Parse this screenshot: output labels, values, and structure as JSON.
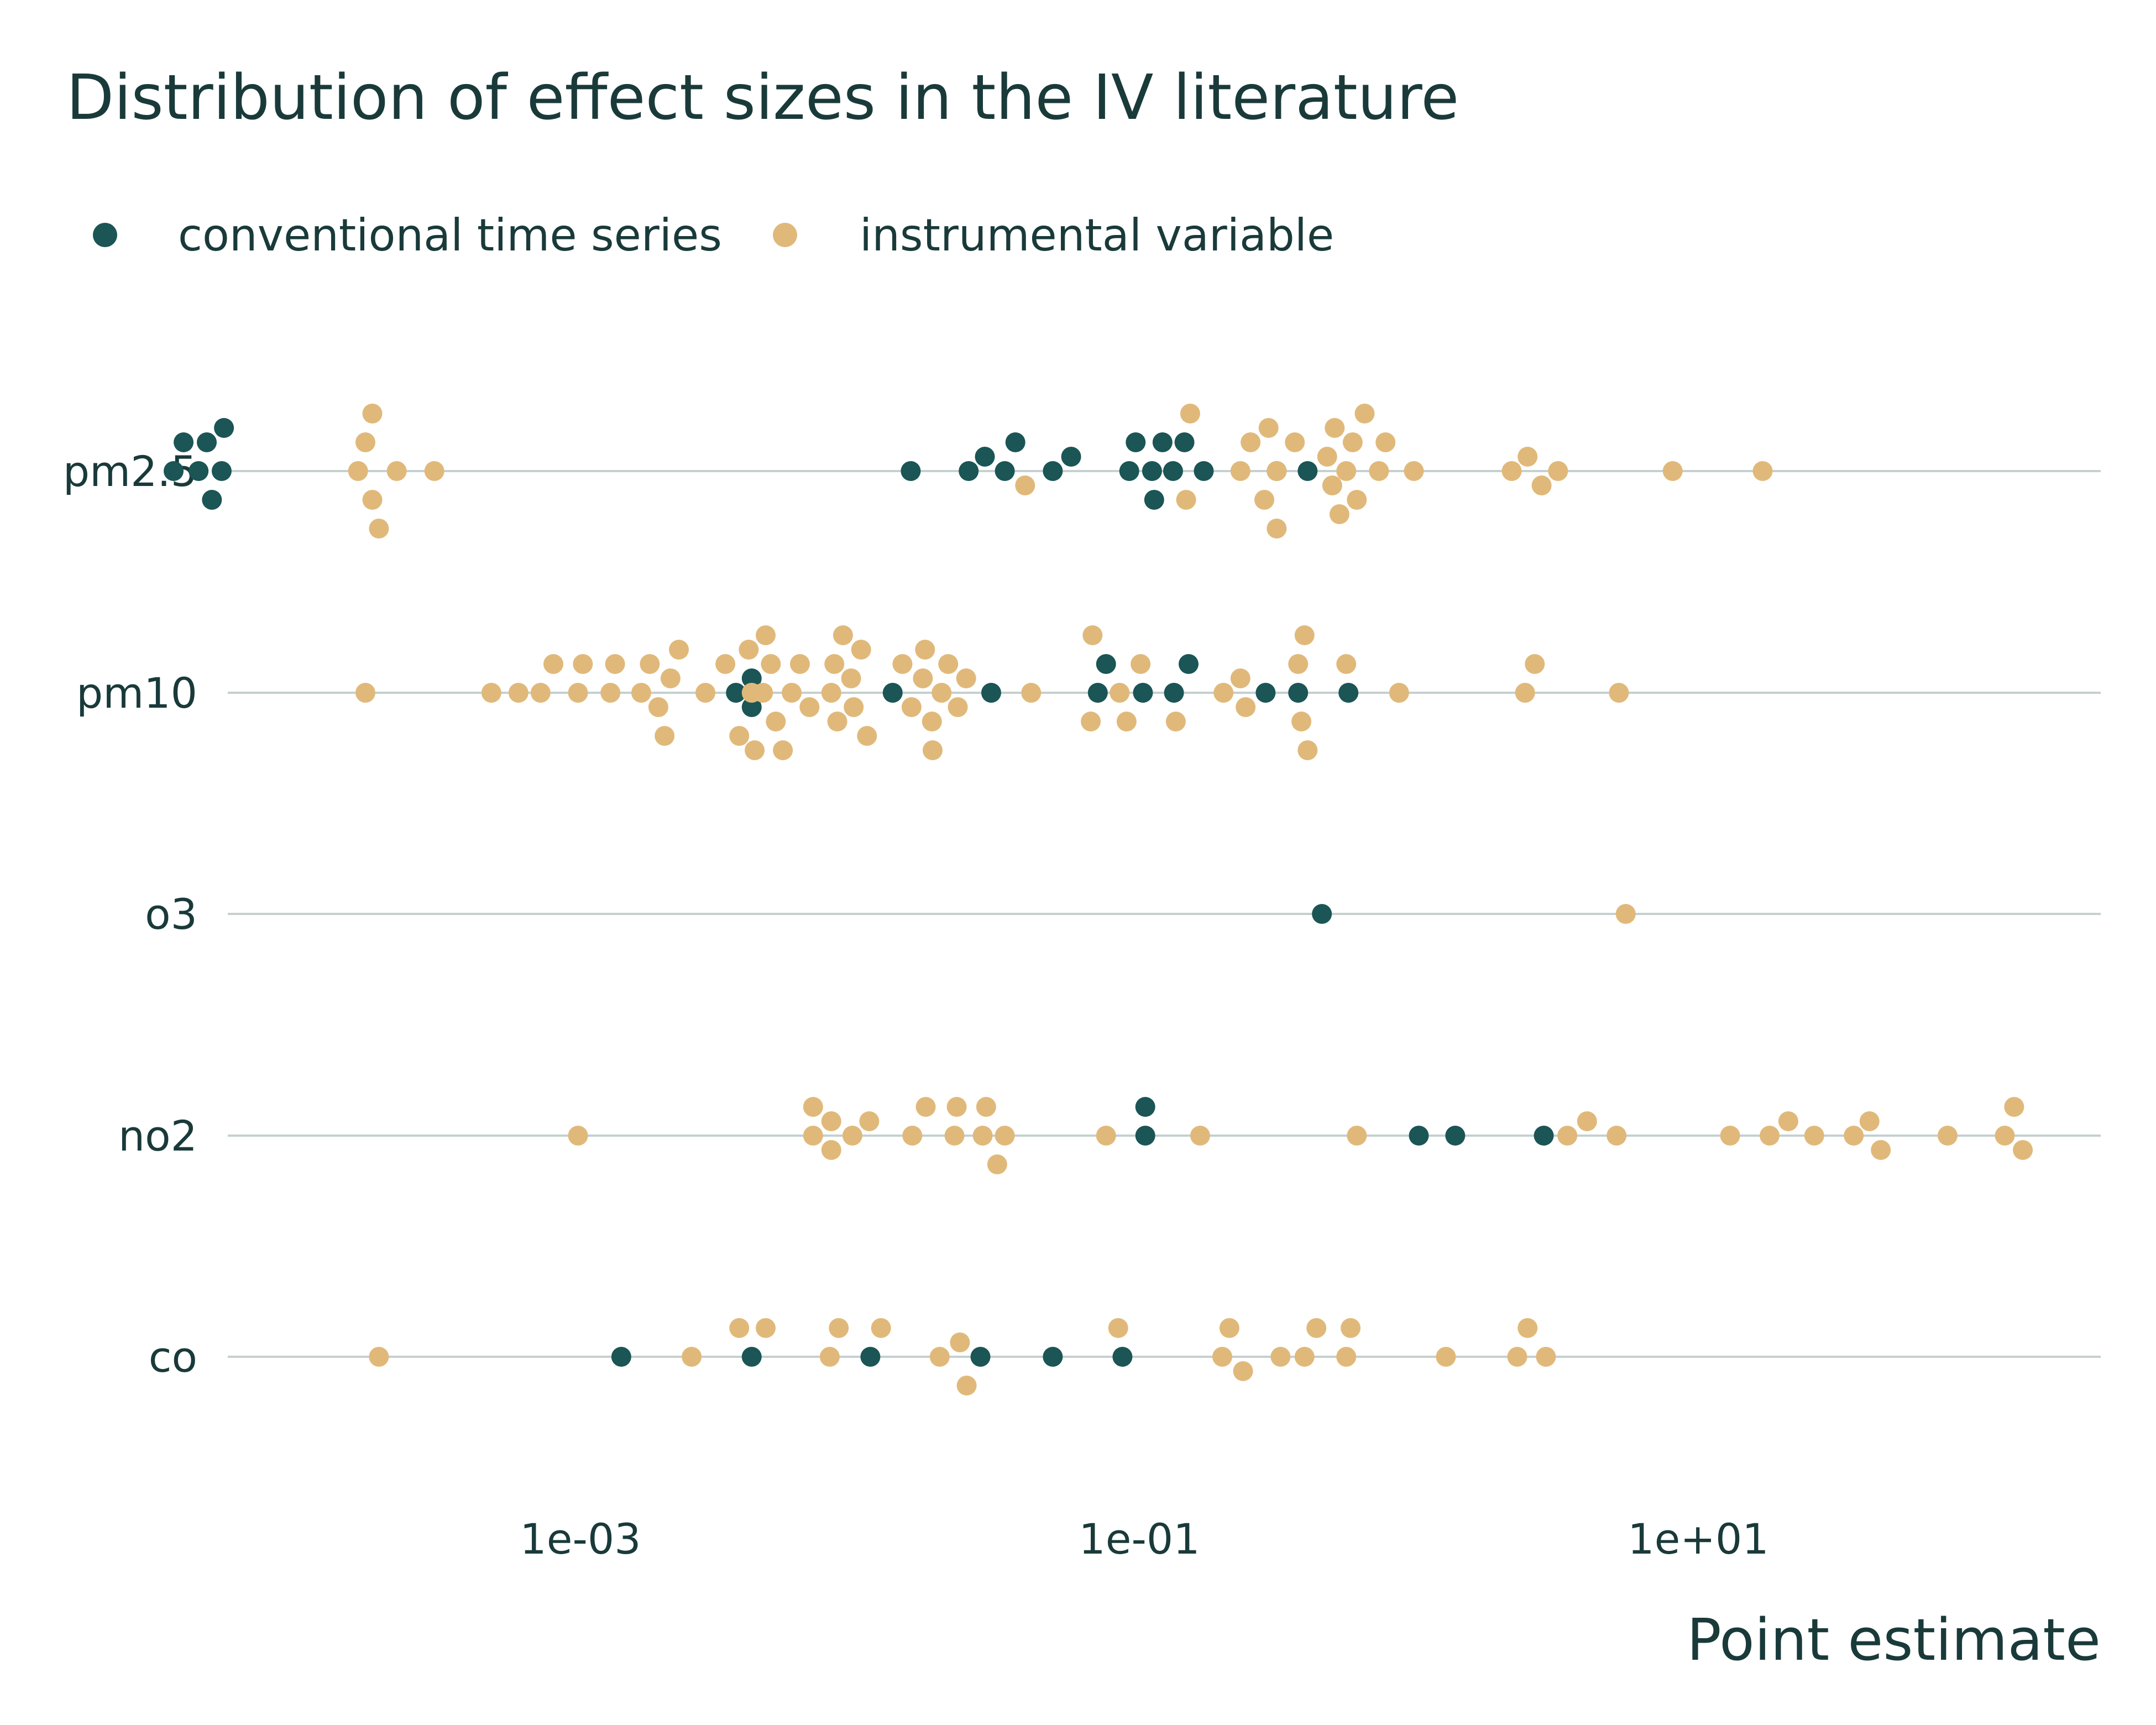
{
  "colors": {
    "conventional": "#1b5555",
    "instrumental": "#e0b97a",
    "grid": "#c5d0d0",
    "text": "#1a3a3a"
  },
  "chart_data": {
    "type": "scatter",
    "title": "Distribution of effect sizes in the IV literature",
    "xlabel": "Point estimate",
    "ylabel": "",
    "x_scale": "log10",
    "xlim": [
      2e-05,
      1200
    ],
    "x_ticks": [
      {
        "value": 0.001,
        "label": "1e-03"
      },
      {
        "value": 0.1,
        "label": "1e-01"
      },
      {
        "value": 10,
        "label": "1e+01"
      }
    ],
    "categories": [
      "pm2.5",
      "pm10",
      "o3",
      "no2",
      "co"
    ],
    "legend": {
      "position": "top-left",
      "entries": [
        "conventional time series",
        "instrumental variable"
      ]
    },
    "series": [
      {
        "name": "conventional time series",
        "points": [
          {
            "cat": "pm2.5",
            "x": 3.5e-05
          },
          {
            "cat": "pm2.5",
            "x": 3.8e-05
          },
          {
            "cat": "pm2.5",
            "x": 4.3e-05
          },
          {
            "cat": "pm2.5",
            "x": 4.6e-05
          },
          {
            "cat": "pm2.5",
            "x": 4.8e-05
          },
          {
            "cat": "pm2.5",
            "x": 5.2e-05
          },
          {
            "cat": "pm2.5",
            "x": 5.3e-05
          },
          {
            "cat": "pm2.5",
            "x": 0.0152
          },
          {
            "cat": "pm2.5",
            "x": 0.0245
          },
          {
            "cat": "pm2.5",
            "x": 0.028
          },
          {
            "cat": "pm2.5",
            "x": 0.033
          },
          {
            "cat": "pm2.5",
            "x": 0.036
          },
          {
            "cat": "pm2.5",
            "x": 0.049
          },
          {
            "cat": "pm2.5",
            "x": 0.057
          },
          {
            "cat": "pm2.5",
            "x": 0.092
          },
          {
            "cat": "pm2.5",
            "x": 0.097
          },
          {
            "cat": "pm2.5",
            "x": 0.111
          },
          {
            "cat": "pm2.5",
            "x": 0.113
          },
          {
            "cat": "pm2.5",
            "x": 0.121
          },
          {
            "cat": "pm2.5",
            "x": 0.132
          },
          {
            "cat": "pm2.5",
            "x": 0.145
          },
          {
            "cat": "pm2.5",
            "x": 0.17
          },
          {
            "cat": "pm2.5",
            "x": 0.31
          },
          {
            "cat": "pm2.5",
            "x": 0.4
          },
          {
            "cat": "pm10",
            "x": 0.0036
          },
          {
            "cat": "pm10",
            "x": 0.0041
          },
          {
            "cat": "pm10",
            "x": 0.0041
          },
          {
            "cat": "pm10",
            "x": 0.0131
          },
          {
            "cat": "pm10",
            "x": 0.0295
          },
          {
            "cat": "pm10",
            "x": 0.071
          },
          {
            "cat": "pm10",
            "x": 0.076
          },
          {
            "cat": "pm10",
            "x": 0.103
          },
          {
            "cat": "pm10",
            "x": 0.133
          },
          {
            "cat": "pm10",
            "x": 0.15
          },
          {
            "cat": "pm10",
            "x": 0.283
          },
          {
            "cat": "pm10",
            "x": 0.37
          },
          {
            "cat": "pm10",
            "x": 0.56
          },
          {
            "cat": "o3",
            "x": 0.45
          },
          {
            "cat": "no2",
            "x": 0.105
          },
          {
            "cat": "no2",
            "x": 0.105
          },
          {
            "cat": "no2",
            "x": 1.0
          },
          {
            "cat": "no2",
            "x": 1.35
          },
          {
            "cat": "no2",
            "x": 2.8
          },
          {
            "cat": "co",
            "x": 0.0014
          },
          {
            "cat": "co",
            "x": 0.0041
          },
          {
            "cat": "co",
            "x": 0.0109
          },
          {
            "cat": "co",
            "x": 0.027
          },
          {
            "cat": "co",
            "x": 0.049
          },
          {
            "cat": "co",
            "x": 0.087
          }
        ]
      },
      {
        "name": "instrumental variable",
        "points": [
          {
            "cat": "pm2.5",
            "x": 0.00016
          },
          {
            "cat": "pm2.5",
            "x": 0.00017
          },
          {
            "cat": "pm2.5",
            "x": 0.00018
          },
          {
            "cat": "pm2.5",
            "x": 0.00018
          },
          {
            "cat": "pm2.5",
            "x": 0.00019
          },
          {
            "cat": "pm2.5",
            "x": 0.00022
          },
          {
            "cat": "pm2.5",
            "x": 0.0003
          },
          {
            "cat": "pm2.5",
            "x": 0.039
          },
          {
            "cat": "pm2.5",
            "x": 0.147
          },
          {
            "cat": "pm2.5",
            "x": 0.152
          },
          {
            "cat": "pm2.5",
            "x": 0.23
          },
          {
            "cat": "pm2.5",
            "x": 0.25
          },
          {
            "cat": "pm2.5",
            "x": 0.28
          },
          {
            "cat": "pm2.5",
            "x": 0.29
          },
          {
            "cat": "pm2.5",
            "x": 0.31
          },
          {
            "cat": "pm2.5",
            "x": 0.31
          },
          {
            "cat": "pm2.5",
            "x": 0.36
          },
          {
            "cat": "pm2.5",
            "x": 0.47
          },
          {
            "cat": "pm2.5",
            "x": 0.49
          },
          {
            "cat": "pm2.5",
            "x": 0.5
          },
          {
            "cat": "pm2.5",
            "x": 0.52
          },
          {
            "cat": "pm2.5",
            "x": 0.55
          },
          {
            "cat": "pm2.5",
            "x": 0.58
          },
          {
            "cat": "pm2.5",
            "x": 0.6
          },
          {
            "cat": "pm2.5",
            "x": 0.64
          },
          {
            "cat": "pm2.5",
            "x": 0.72
          },
          {
            "cat": "pm2.5",
            "x": 0.76
          },
          {
            "cat": "pm2.5",
            "x": 0.96
          },
          {
            "cat": "pm2.5",
            "x": 2.15
          },
          {
            "cat": "pm2.5",
            "x": 2.45
          },
          {
            "cat": "pm2.5",
            "x": 2.75
          },
          {
            "cat": "pm2.5",
            "x": 3.15
          },
          {
            "cat": "pm2.5",
            "x": 8.1
          },
          {
            "cat": "pm2.5",
            "x": 17
          },
          {
            "cat": "pm10",
            "x": 0.00017
          },
          {
            "cat": "pm10",
            "x": 0.00048
          },
          {
            "cat": "pm10",
            "x": 0.0006
          },
          {
            "cat": "pm10",
            "x": 0.00072
          },
          {
            "cat": "pm10",
            "x": 0.0008
          },
          {
            "cat": "pm10",
            "x": 0.00098
          },
          {
            "cat": "pm10",
            "x": 0.00102
          },
          {
            "cat": "pm10",
            "x": 0.00128
          },
          {
            "cat": "pm10",
            "x": 0.00133
          },
          {
            "cat": "pm10",
            "x": 0.00165
          },
          {
            "cat": "pm10",
            "x": 0.00177
          },
          {
            "cat": "pm10",
            "x": 0.0019
          },
          {
            "cat": "pm10",
            "x": 0.002
          },
          {
            "cat": "pm10",
            "x": 0.0021
          },
          {
            "cat": "pm10",
            "x": 0.00225
          },
          {
            "cat": "pm10",
            "x": 0.0028
          },
          {
            "cat": "pm10",
            "x": 0.0033
          },
          {
            "cat": "pm10",
            "x": 0.0037
          },
          {
            "cat": "pm10",
            "x": 0.004
          },
          {
            "cat": "pm10",
            "x": 0.0041
          },
          {
            "cat": "pm10",
            "x": 0.0042
          },
          {
            "cat": "pm10",
            "x": 0.0045
          },
          {
            "cat": "pm10",
            "x": 0.0046
          },
          {
            "cat": "pm10",
            "x": 0.0048
          },
          {
            "cat": "pm10",
            "x": 0.005
          },
          {
            "cat": "pm10",
            "x": 0.0053
          },
          {
            "cat": "pm10",
            "x": 0.0057
          },
          {
            "cat": "pm10",
            "x": 0.0061
          },
          {
            "cat": "pm10",
            "x": 0.0066
          },
          {
            "cat": "pm10",
            "x": 0.0079
          },
          {
            "cat": "pm10",
            "x": 0.0081
          },
          {
            "cat": "pm10",
            "x": 0.0083
          },
          {
            "cat": "pm10",
            "x": 0.0087
          },
          {
            "cat": "pm10",
            "x": 0.0093
          },
          {
            "cat": "pm10",
            "x": 0.0095
          },
          {
            "cat": "pm10",
            "x": 0.0101
          },
          {
            "cat": "pm10",
            "x": 0.0106
          },
          {
            "cat": "pm10",
            "x": 0.0142
          },
          {
            "cat": "pm10",
            "x": 0.0153
          },
          {
            "cat": "pm10",
            "x": 0.0168
          },
          {
            "cat": "pm10",
            "x": 0.0171
          },
          {
            "cat": "pm10",
            "x": 0.0181
          },
          {
            "cat": "pm10",
            "x": 0.0182
          },
          {
            "cat": "pm10",
            "x": 0.0196
          },
          {
            "cat": "pm10",
            "x": 0.0207
          },
          {
            "cat": "pm10",
            "x": 0.0224
          },
          {
            "cat": "pm10",
            "x": 0.024
          },
          {
            "cat": "pm10",
            "x": 0.041
          },
          {
            "cat": "pm10",
            "x": 0.067
          },
          {
            "cat": "pm10",
            "x": 0.068
          },
          {
            "cat": "pm10",
            "x": 0.085
          },
          {
            "cat": "pm10",
            "x": 0.09
          },
          {
            "cat": "pm10",
            "x": 0.101
          },
          {
            "cat": "pm10",
            "x": 0.135
          },
          {
            "cat": "pm10",
            "x": 0.2
          },
          {
            "cat": "pm10",
            "x": 0.23
          },
          {
            "cat": "pm10",
            "x": 0.24
          },
          {
            "cat": "pm10",
            "x": 0.37
          },
          {
            "cat": "pm10",
            "x": 0.38
          },
          {
            "cat": "pm10",
            "x": 0.39
          },
          {
            "cat": "pm10",
            "x": 0.4
          },
          {
            "cat": "pm10",
            "x": 0.55
          },
          {
            "cat": "pm10",
            "x": 0.85
          },
          {
            "cat": "pm10",
            "x": 2.4
          },
          {
            "cat": "pm10",
            "x": 2.6
          },
          {
            "cat": "pm10",
            "x": 5.2
          },
          {
            "cat": "o3",
            "x": 5.5
          },
          {
            "cat": "no2",
            "x": 0.00098
          },
          {
            "cat": "no2",
            "x": 0.0068
          },
          {
            "cat": "no2",
            "x": 0.0068
          },
          {
            "cat": "no2",
            "x": 0.0079
          },
          {
            "cat": "no2",
            "x": 0.0079
          },
          {
            "cat": "no2",
            "x": 0.0094
          },
          {
            "cat": "no2",
            "x": 0.0108
          },
          {
            "cat": "no2",
            "x": 0.0154
          },
          {
            "cat": "no2",
            "x": 0.0172
          },
          {
            "cat": "no2",
            "x": 0.0218
          },
          {
            "cat": "no2",
            "x": 0.0222
          },
          {
            "cat": "no2",
            "x": 0.0275
          },
          {
            "cat": "no2",
            "x": 0.0283
          },
          {
            "cat": "no2",
            "x": 0.031
          },
          {
            "cat": "no2",
            "x": 0.033
          },
          {
            "cat": "no2",
            "x": 0.076
          },
          {
            "cat": "no2",
            "x": 0.165
          },
          {
            "cat": "no2",
            "x": 0.6
          },
          {
            "cat": "no2",
            "x": 3.4
          },
          {
            "cat": "no2",
            "x": 4.0
          },
          {
            "cat": "no2",
            "x": 5.1
          },
          {
            "cat": "no2",
            "x": 13
          },
          {
            "cat": "no2",
            "x": 18
          },
          {
            "cat": "no2",
            "x": 21
          },
          {
            "cat": "no2",
            "x": 26
          },
          {
            "cat": "no2",
            "x": 36
          },
          {
            "cat": "no2",
            "x": 41
          },
          {
            "cat": "no2",
            "x": 45
          },
          {
            "cat": "no2",
            "x": 78
          },
          {
            "cat": "no2",
            "x": 125
          },
          {
            "cat": "no2",
            "x": 135
          },
          {
            "cat": "no2",
            "x": 145
          },
          {
            "cat": "co",
            "x": 0.00019
          },
          {
            "cat": "co",
            "x": 0.0025
          },
          {
            "cat": "co",
            "x": 0.0037
          },
          {
            "cat": "co",
            "x": 0.0046
          },
          {
            "cat": "co",
            "x": 0.0078
          },
          {
            "cat": "co",
            "x": 0.0084
          },
          {
            "cat": "co",
            "x": 0.0119
          },
          {
            "cat": "co",
            "x": 0.0193
          },
          {
            "cat": "co",
            "x": 0.0228
          },
          {
            "cat": "co",
            "x": 0.0241
          },
          {
            "cat": "co",
            "x": 0.084
          },
          {
            "cat": "co",
            "x": 0.198
          },
          {
            "cat": "co",
            "x": 0.21
          },
          {
            "cat": "co",
            "x": 0.235
          },
          {
            "cat": "co",
            "x": 0.32
          },
          {
            "cat": "co",
            "x": 0.39
          },
          {
            "cat": "co",
            "x": 0.43
          },
          {
            "cat": "co",
            "x": 0.55
          },
          {
            "cat": "co",
            "x": 0.57
          },
          {
            "cat": "co",
            "x": 1.25
          },
          {
            "cat": "co",
            "x": 2.25
          },
          {
            "cat": "co",
            "x": 2.45
          },
          {
            "cat": "co",
            "x": 2.85
          }
        ]
      }
    ]
  }
}
